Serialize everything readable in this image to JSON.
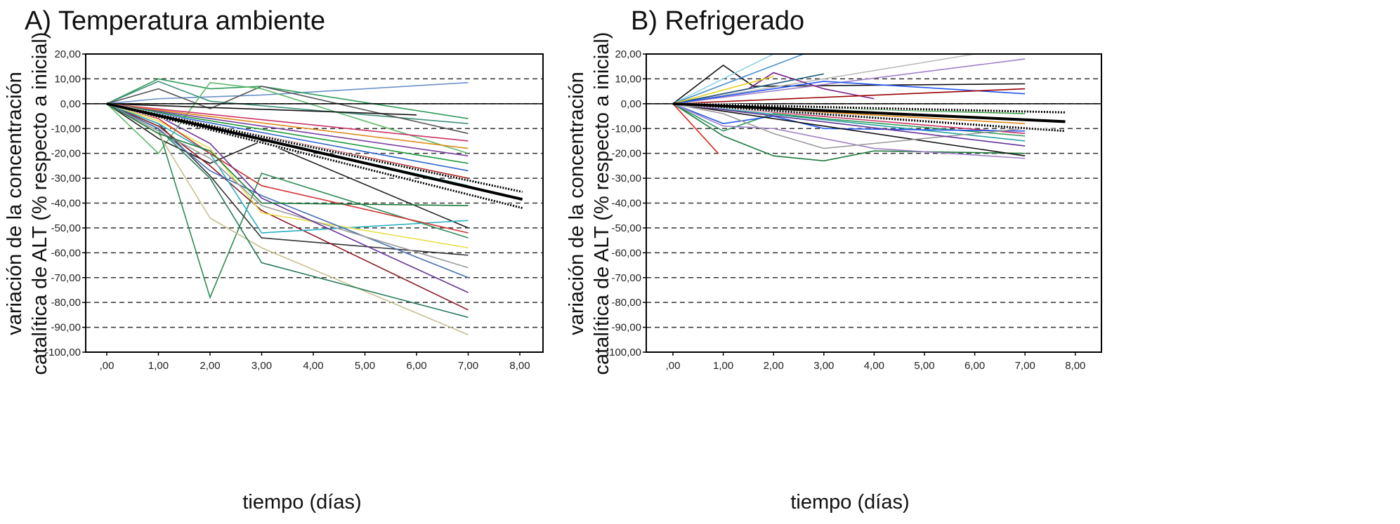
{
  "chart_data": [
    {
      "type": "line",
      "title": "A) Temperatura ambiente",
      "xlabel": "tiempo (días)",
      "ylabel": [
        "variación de la concentración",
        "catalítica de ALT (% respecto a inicial)"
      ],
      "xlim": [
        -0.4,
        8.4
      ],
      "ylim": [
        -100,
        20
      ],
      "xticks": [
        ",00",
        "1,00",
        "2,00",
        "3,00",
        "4,00",
        "5,00",
        "6,00",
        "7,00",
        "8,00"
      ],
      "yticks": [
        "20,00",
        "10,00",
        "0,00",
        "-10,00",
        "-20,00",
        "-30,00",
        "-40,00",
        "-50,00",
        "-60,00",
        "-70,00",
        "-80,00",
        "-90,00",
        "-100,00"
      ],
      "grid": "horizontal dashed",
      "reference_line_y": 0,
      "series": [
        {
          "color": "#6a8fc8",
          "x": [
            0,
            1,
            3,
            7
          ],
          "y": [
            0,
            2,
            3.5,
            8.5
          ]
        },
        {
          "color": "#2e9a5a",
          "x": [
            0,
            1,
            2,
            3,
            7
          ],
          "y": [
            0,
            10,
            6,
            7,
            -6
          ]
        },
        {
          "color": "#3d8f7a",
          "x": [
            0,
            1,
            2,
            7
          ],
          "y": [
            0,
            9,
            1,
            -8
          ]
        },
        {
          "color": "#555555",
          "x": [
            0,
            1,
            2,
            3,
            7
          ],
          "y": [
            0,
            6,
            -2,
            7,
            -12
          ]
        },
        {
          "color": "#5fb86a",
          "x": [
            0,
            1,
            2,
            3,
            7
          ],
          "y": [
            0,
            -20,
            8.5,
            6,
            -20
          ]
        },
        {
          "color": "#111111",
          "x": [
            0,
            6
          ],
          "y": [
            0,
            -4.5
          ]
        },
        {
          "color": "#cc3366",
          "x": [
            0,
            7
          ],
          "y": [
            0,
            -15
          ]
        },
        {
          "color": "#e08a1a",
          "x": [
            0,
            7
          ],
          "y": [
            0,
            -18
          ]
        },
        {
          "color": "#7b3fa0",
          "x": [
            0,
            7
          ],
          "y": [
            0,
            -21
          ]
        },
        {
          "color": "#1f9a3a",
          "x": [
            0,
            7
          ],
          "y": [
            0,
            -24
          ]
        },
        {
          "color": "#3366cc",
          "x": [
            0,
            7
          ],
          "y": [
            0,
            -27
          ]
        },
        {
          "color": "#b22222",
          "x": [
            0,
            7
          ],
          "y": [
            0,
            -30
          ]
        },
        {
          "color": "#29a3a3",
          "x": [
            0,
            7
          ],
          "y": [
            0,
            -33
          ]
        },
        {
          "color": "#222222",
          "x": [
            0,
            1,
            2,
            3,
            7
          ],
          "y": [
            0,
            -14,
            -24,
            -15,
            -50
          ]
        },
        {
          "color": "#2e8b57",
          "x": [
            0,
            1,
            2,
            3,
            7
          ],
          "y": [
            0,
            -10,
            -78,
            -28,
            -54
          ]
        },
        {
          "color": "#c8c090",
          "x": [
            0,
            1,
            2,
            3,
            7
          ],
          "y": [
            0,
            -12,
            -46,
            -58,
            -93
          ]
        },
        {
          "color": "#2a7a5a",
          "x": [
            0,
            1,
            2,
            3,
            7
          ],
          "y": [
            0,
            -10,
            -30,
            -64,
            -86
          ]
        },
        {
          "color": "#333333",
          "x": [
            0,
            1,
            2,
            3,
            7
          ],
          "y": [
            0,
            -8,
            -29,
            -54,
            -61
          ]
        },
        {
          "color": "#8b1a2a",
          "x": [
            0,
            1,
            2,
            3,
            7
          ],
          "y": [
            0,
            -9,
            -25,
            -43,
            -83
          ]
        },
        {
          "color": "#2ab0c0",
          "x": [
            0,
            1,
            2,
            3,
            7
          ],
          "y": [
            0,
            -8,
            -20,
            -52,
            -47
          ]
        },
        {
          "color": "#e6e04a",
          "x": [
            0,
            1,
            2,
            3,
            7
          ],
          "y": [
            0,
            -7,
            -18,
            -44,
            -58
          ]
        },
        {
          "color": "#4a6fb0",
          "x": [
            0,
            1,
            2,
            3,
            7
          ],
          "y": [
            0,
            -10,
            -27,
            -37,
            -70
          ]
        },
        {
          "color": "#d03030",
          "x": [
            0,
            1,
            2,
            3,
            7
          ],
          "y": [
            0,
            -6,
            -20,
            -33,
            -52
          ]
        },
        {
          "color": "#999999",
          "x": [
            0,
            1,
            2,
            3,
            7
          ],
          "y": [
            0,
            -11,
            -22,
            -41,
            -66
          ]
        },
        {
          "color": "#663399",
          "x": [
            0,
            1,
            2,
            3,
            7
          ],
          "y": [
            0,
            -5,
            -16,
            -38,
            -76
          ]
        },
        {
          "color": "#1a7a3a",
          "x": [
            0,
            1,
            2,
            3,
            7
          ],
          "y": [
            0,
            -12,
            -19,
            -40,
            -41
          ]
        }
      ],
      "fit": {
        "color": "#000000",
        "x": [
          0,
          8.05
        ],
        "y": [
          0,
          -38.5
        ]
      },
      "ci": [
        {
          "color": "#000000",
          "x": [
            0,
            8.05
          ],
          "y": [
            0,
            -35.5
          ]
        },
        {
          "color": "#000000",
          "x": [
            0,
            8.05
          ],
          "y": [
            0,
            -42
          ]
        }
      ]
    },
    {
      "type": "line",
      "title": "B) Refrigerado",
      "xlabel": "tiempo (días)",
      "ylabel": [
        "variación de la concentración",
        "catalítica de ALT (% respecto a inicial)"
      ],
      "xlim": [
        -0.4,
        8.4
      ],
      "ylim": [
        -100,
        20
      ],
      "xticks": [
        ",00",
        "1,00",
        "2,00",
        "3,00",
        "4,00",
        "5,00",
        "6,00",
        "7,00",
        "8,00"
      ],
      "yticks": [
        "20,00",
        "10,00",
        "0,00",
        "-10,00",
        "-20,00",
        "-30,00",
        "-40,00",
        "-50,00",
        "-60,00",
        "-70,00",
        "-80,00",
        "-90,00",
        "-100,00"
      ],
      "grid": "horizontal dashed",
      "reference_line_y": 0,
      "series": [
        {
          "color": "#111111",
          "x": [
            0,
            1,
            1.6,
            7
          ],
          "y": [
            0,
            15.5,
            7,
            8
          ]
        },
        {
          "color": "#8ad4e0",
          "x": [
            0,
            2
          ],
          "y": [
            0,
            20
          ]
        },
        {
          "color": "#4a8fd0",
          "x": [
            0,
            2.6
          ],
          "y": [
            0,
            20
          ]
        },
        {
          "color": "#bbbbbb",
          "x": [
            0,
            6
          ],
          "y": [
            0,
            20
          ]
        },
        {
          "color": "#a080c8",
          "x": [
            0,
            7
          ],
          "y": [
            0,
            18
          ]
        },
        {
          "color": "#7a1f8a",
          "x": [
            0,
            1.5,
            2,
            3,
            4
          ],
          "y": [
            0,
            6,
            12.5,
            6,
            2
          ]
        },
        {
          "color": "#1f5a7a",
          "x": [
            0,
            3
          ],
          "y": [
            0,
            12
          ]
        },
        {
          "color": "#e6d21a",
          "x": [
            0,
            2
          ],
          "y": [
            0,
            11
          ]
        },
        {
          "color": "#2255ee",
          "x": [
            0,
            3,
            7
          ],
          "y": [
            0,
            9,
            4
          ]
        },
        {
          "color": "#990000",
          "x": [
            0,
            7
          ],
          "y": [
            0,
            6
          ]
        },
        {
          "color": "#2e9a3a",
          "x": [
            0,
            7
          ],
          "y": [
            0,
            -4
          ]
        },
        {
          "color": "#e08a1a",
          "x": [
            0,
            7
          ],
          "y": [
            0,
            -8
          ]
        },
        {
          "color": "#cc3366",
          "x": [
            0,
            7
          ],
          "y": [
            0,
            -12
          ]
        },
        {
          "color": "#29a3a3",
          "x": [
            0,
            7
          ],
          "y": [
            0,
            -15
          ]
        },
        {
          "color": "#e02020",
          "x": [
            0,
            0.9
          ],
          "y": [
            0,
            -20
          ]
        },
        {
          "color": "#1a7a3a",
          "x": [
            0,
            1,
            2,
            3,
            4,
            7
          ],
          "y": [
            0,
            -13,
            -21,
            -23,
            -19,
            -20
          ]
        },
        {
          "color": "#2e9a5a",
          "x": [
            0,
            1,
            2,
            3,
            7
          ],
          "y": [
            0,
            -11,
            -4,
            -6,
            -13
          ]
        },
        {
          "color": "#2255ee",
          "x": [
            0,
            1,
            2,
            3,
            7
          ],
          "y": [
            0,
            -8,
            -5,
            -10,
            -11
          ]
        },
        {
          "color": "#a080c8",
          "x": [
            0,
            1,
            2,
            3,
            4,
            7
          ],
          "y": [
            0,
            -9,
            -10,
            -14,
            -18,
            -22
          ]
        },
        {
          "color": "#111111",
          "x": [
            0,
            7
          ],
          "y": [
            0,
            -21
          ]
        },
        {
          "color": "#999999",
          "x": [
            0,
            1,
            2,
            3,
            7
          ],
          "y": [
            0,
            -4,
            -12,
            -18,
            -10
          ]
        },
        {
          "color": "#663399",
          "x": [
            0,
            7
          ],
          "y": [
            0,
            -17
          ]
        }
      ],
      "fit": {
        "color": "#000000",
        "x": [
          0,
          7.8
        ],
        "y": [
          0,
          -7.2
        ]
      },
      "ci": [
        {
          "color": "#000000",
          "x": [
            0,
            7.8
          ],
          "y": [
            0,
            -3.5
          ]
        },
        {
          "color": "#000000",
          "x": [
            0,
            7.8
          ],
          "y": [
            0,
            -11
          ]
        }
      ]
    }
  ]
}
